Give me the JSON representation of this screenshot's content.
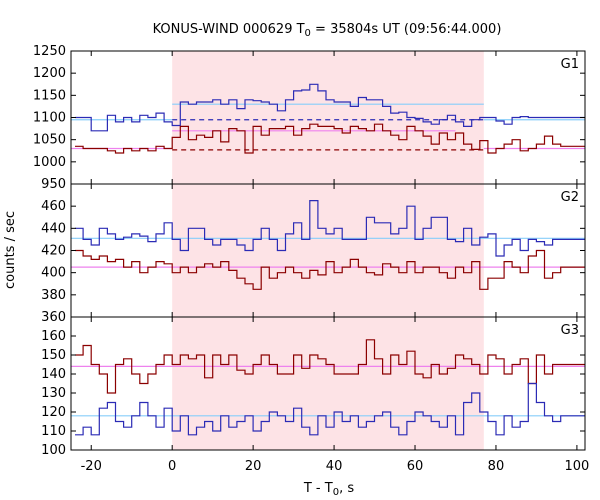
{
  "chart_data": {
    "type": "line",
    "title": "KONUS-WIND 000629 T",
    "title_sub": "0",
    "title_rest": " = 35804s UT (09:56:44.000)",
    "xlabel": "T - T",
    "xlabel_sub": "0",
    "xlabel_rest": ", s",
    "ylabel": "counts / sec",
    "xlim": [
      -25,
      102
    ],
    "x_ticks": [
      -20,
      0,
      20,
      40,
      60,
      80,
      100
    ],
    "x_tick_labels": [
      "-20",
      "0",
      "20",
      "40",
      "60",
      "80",
      "100"
    ],
    "shaded_interval": [
      0,
      77
    ],
    "bin_start": -24,
    "bin_width": 2,
    "colors": {
      "blue": "#2b2bb5",
      "red": "#8b0000",
      "cyan": "#87cefa",
      "pink": "#ee82ee",
      "shade": "#fde3e6"
    },
    "panels": [
      {
        "label": "G1",
        "ylim": [
          950,
          1250
        ],
        "y_ticks": [
          950,
          1000,
          1050,
          1100,
          1150,
          1200,
          1250
        ],
        "y_tick_labels": [
          "950",
          "1000",
          "1050",
          "1100",
          "1150",
          "1200",
          "1250"
        ],
        "series": [
          {
            "color": "blue",
            "values": [
              1100,
              1100,
              1070,
              1070,
              1105,
              1090,
              1100,
              1090,
              1105,
              1100,
              1110,
              1090,
              1082,
              1135,
              1130,
              1135,
              1135,
              1140,
              1130,
              1140,
              1120,
              1140,
              1138,
              1135,
              1130,
              1115,
              1140,
              1160,
              1162,
              1175,
              1160,
              1140,
              1135,
              1135,
              1125,
              1145,
              1140,
              1140,
              1125,
              1110,
              1112,
              1100,
              1098,
              1090,
              1085,
              1095,
              1105,
              1090,
              1080,
              1095,
              1100,
              1100,
              1092,
              1085,
              1100,
              1102,
              1100,
              1100,
              1100,
              1100,
              1100,
              1100,
              1100
            ]
          },
          {
            "color": "red",
            "values": [
              1035,
              1030,
              1030,
              1030,
              1025,
              1020,
              1030,
              1025,
              1030,
              1025,
              1035,
              1030,
              1055,
              1080,
              1050,
              1060,
              1055,
              1070,
              1045,
              1075,
              1070,
              1020,
              1080,
              1060,
              1075,
              1075,
              1080,
              1060,
              1075,
              1085,
              1080,
              1080,
              1075,
              1065,
              1080,
              1075,
              1070,
              1085,
              1070,
              1060,
              1050,
              1080,
              1070,
              1058,
              1040,
              1065,
              1050,
              1065,
              1040,
              1028,
              1048,
              1020,
              1030,
              1040,
              1050,
              1025,
              1030,
              1040,
              1058,
              1040,
              1035,
              1035,
              1035
            ]
          }
        ],
        "levels": [
          {
            "color": "cyan",
            "value": 1095,
            "dash": false,
            "x_range": [
              -25,
              0
            ]
          },
          {
            "color": "cyan",
            "value": 1130,
            "dash": false,
            "x_range": [
              0,
              77
            ]
          },
          {
            "color": "cyan",
            "value": 1095,
            "dash": false,
            "x_range": [
              77,
              102
            ]
          },
          {
            "color": "blue",
            "value": 1095,
            "dash": true,
            "x_range": [
              0,
              77
            ]
          },
          {
            "color": "pink",
            "value": 1030,
            "dash": false,
            "x_range": [
              -25,
              0
            ]
          },
          {
            "color": "pink",
            "value": 1070,
            "dash": false,
            "x_range": [
              0,
              70
            ]
          },
          {
            "color": "pink",
            "value": 1030,
            "dash": false,
            "x_range": [
              77,
              102
            ]
          },
          {
            "color": "red",
            "value": 1027,
            "dash": true,
            "x_range": [
              0,
              77
            ]
          }
        ]
      },
      {
        "label": "G2",
        "ylim": [
          360,
          480
        ],
        "y_ticks": [
          360,
          380,
          400,
          420,
          440,
          460
        ],
        "y_tick_labels": [
          "360",
          "380",
          "400",
          "420",
          "440",
          "460"
        ],
        "series": [
          {
            "color": "blue",
            "values": [
              440,
              430,
              425,
              440,
              435,
              430,
              432,
              435,
              433,
              428,
              435,
              445,
              430,
              420,
              440,
              440,
              430,
              425,
              430,
              430,
              425,
              420,
              430,
              440,
              430,
              420,
              435,
              445,
              430,
              465,
              440,
              435,
              440,
              430,
              430,
              430,
              450,
              445,
              445,
              435,
              440,
              460,
              430,
              440,
              450,
              450,
              430,
              428,
              440,
              425,
              432,
              435,
              415,
              425,
              430,
              420,
              430,
              428,
              425,
              430,
              430,
              430,
              430
            ]
          },
          {
            "color": "red",
            "values": [
              420,
              415,
              412,
              415,
              410,
              412,
              405,
              410,
              400,
              405,
              410,
              408,
              400,
              405,
              400,
              405,
              408,
              405,
              410,
              402,
              395,
              390,
              385,
              405,
              395,
              400,
              405,
              400,
              395,
              402,
              398,
              410,
              400,
              405,
              412,
              405,
              400,
              398,
              408,
              405,
              400,
              410,
              400,
              405,
              405,
              400,
              395,
              405,
              400,
              410,
              385,
              395,
              395,
              410,
              405,
              400,
              415,
              420,
              395,
              400,
              405,
              405,
              405
            ]
          }
        ],
        "levels": [
          {
            "color": "cyan",
            "value": 431,
            "dash": false,
            "x_range": [
              -25,
              102
            ]
          },
          {
            "color": "pink",
            "value": 405,
            "dash": false,
            "x_range": [
              -25,
              102
            ]
          }
        ]
      },
      {
        "label": "G3",
        "ylim": [
          100,
          170
        ],
        "y_ticks": [
          100,
          110,
          120,
          130,
          140,
          150,
          160
        ],
        "y_tick_labels": [
          "100",
          "110",
          "120",
          "130",
          "140",
          "150",
          "160"
        ],
        "series": [
          {
            "color": "red",
            "values": [
              150,
              155,
              145,
              140,
              130,
              145,
              148,
              140,
              135,
              140,
              145,
              150,
              145,
              150,
              148,
              150,
              138,
              150,
              145,
              150,
              142,
              140,
              145,
              150,
              145,
              140,
              140,
              150,
              143,
              150,
              148,
              145,
              140,
              140,
              140,
              145,
              158,
              148,
              140,
              150,
              145,
              152,
              140,
              138,
              145,
              140,
              143,
              150,
              148,
              145,
              140,
              150,
              148,
              140,
              145,
              148,
              135,
              150,
              140,
              145,
              145,
              145,
              145
            ]
          },
          {
            "color": "blue",
            "values": [
              108,
              112,
              108,
              122,
              125,
              115,
              112,
              118,
              125,
              118,
              112,
              122,
              110,
              118,
              108,
              112,
              115,
              110,
              118,
              112,
              115,
              118,
              110,
              115,
              120,
              118,
              115,
              122,
              112,
              108,
              118,
              112,
              120,
              115,
              118,
              112,
              115,
              118,
              120,
              112,
              108,
              115,
              120,
              118,
              115,
              112,
              118,
              108,
              125,
              130,
              120,
              115,
              108,
              118,
              112,
              115,
              135,
              125,
              118,
              115,
              118,
              118,
              118
            ]
          }
        ],
        "levels": [
          {
            "color": "pink",
            "value": 144,
            "dash": false,
            "x_range": [
              -25,
              102
            ]
          },
          {
            "color": "cyan",
            "value": 118,
            "dash": false,
            "x_range": [
              -25,
              102
            ]
          }
        ]
      }
    ]
  }
}
